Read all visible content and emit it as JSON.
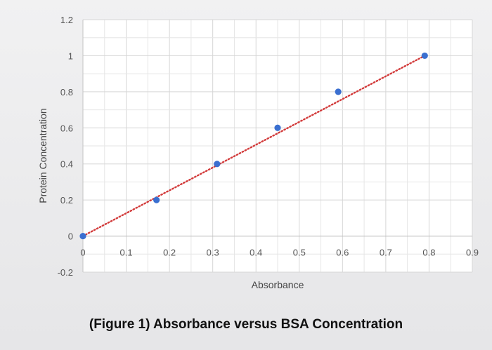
{
  "caption": "(Figure 1) Absorbance versus BSA Concentration",
  "colors": {
    "point": "#3a6fd0",
    "trendline": "#d23a3a",
    "grid": "#d6d6d6",
    "plot_background": "#ffffff"
  },
  "chart_data": {
    "type": "scatter",
    "title": "",
    "xlabel": "Absorbance",
    "ylabel": "Protein Concentration",
    "xlim": [
      0,
      0.9
    ],
    "ylim": [
      -0.2,
      1.2
    ],
    "x_ticks": [
      0,
      0.1,
      0.2,
      0.3,
      0.4,
      0.5,
      0.6,
      0.7,
      0.8,
      0.9
    ],
    "x_tick_labels": [
      "0",
      "0.1",
      "0.2",
      "0.3",
      "0.4",
      "0.5",
      "0.6",
      "0.7",
      "0.8",
      "0.9"
    ],
    "y_ticks": [
      -0.2,
      0,
      0.2,
      0.4,
      0.6,
      0.8,
      1,
      1.2
    ],
    "y_tick_labels": [
      "-0.2",
      "0",
      "0.2",
      "0.4",
      "0.6",
      "0.8",
      "1",
      "1.2"
    ],
    "grid": true,
    "legend": "none",
    "series": [
      {
        "points": [
          {
            "x": 0.0,
            "y": 0.0
          },
          {
            "x": 0.17,
            "y": 0.2
          },
          {
            "x": 0.31,
            "y": 0.4
          },
          {
            "x": 0.45,
            "y": 0.6
          },
          {
            "x": 0.59,
            "y": 0.8
          },
          {
            "x": 0.79,
            "y": 1.0
          }
        ]
      }
    ],
    "trendline": {
      "type": "linear",
      "style": "dotted",
      "from": {
        "x": 0.0,
        "y": 0.0
      },
      "to": {
        "x": 0.79,
        "y": 1.0
      }
    }
  }
}
